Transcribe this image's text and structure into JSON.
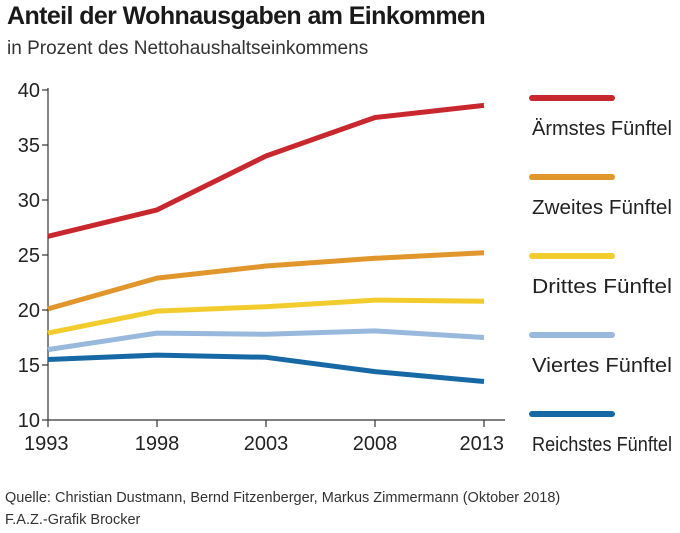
{
  "chart_data": {
    "type": "line",
    "title": "Anteil der Wohnausgaben am Einkommen",
    "subtitle": "in Prozent des Nettohaushaltseinkommens",
    "x": [
      1993,
      1998,
      2003,
      2008,
      2013
    ],
    "x_tick_labels": [
      "1993",
      "1998",
      "2003",
      "2008",
      "2013"
    ],
    "ylim": [
      10,
      40
    ],
    "y_ticks": [
      10,
      15,
      20,
      25,
      30,
      35,
      40
    ],
    "y_tick_labels": [
      "10",
      "15",
      "20",
      "25",
      "30",
      "35",
      "40"
    ],
    "grid": false,
    "legend_position": "right",
    "series": [
      {
        "name": "Ärmstes Fünftel",
        "color": "#c8282d",
        "values": [
          26.7,
          29.1,
          34.0,
          37.5,
          38.6
        ]
      },
      {
        "name": "Zweites Fünftel",
        "color": "#e0962a",
        "values": [
          20.1,
          22.9,
          24.0,
          24.7,
          25.2
        ]
      },
      {
        "name": "Drittes Fünftel",
        "color": "#f2cc2c",
        "values": [
          17.9,
          19.9,
          20.3,
          20.9,
          20.8
        ]
      },
      {
        "name": "Viertes Fünftel",
        "color": "#98b8dc",
        "values": [
          16.4,
          17.9,
          17.8,
          18.1,
          17.5
        ]
      },
      {
        "name": "Reichstes Fünftel",
        "color": "#1769a6",
        "values": [
          15.5,
          15.9,
          15.7,
          14.4,
          13.5
        ]
      }
    ]
  },
  "footer": {
    "source": "Quelle: Christian Dustmann, Bernd Fitzenberger, Markus Zimmermann (Oktober 2018)",
    "credit": "F.A.Z.-Grafik Brocker"
  }
}
